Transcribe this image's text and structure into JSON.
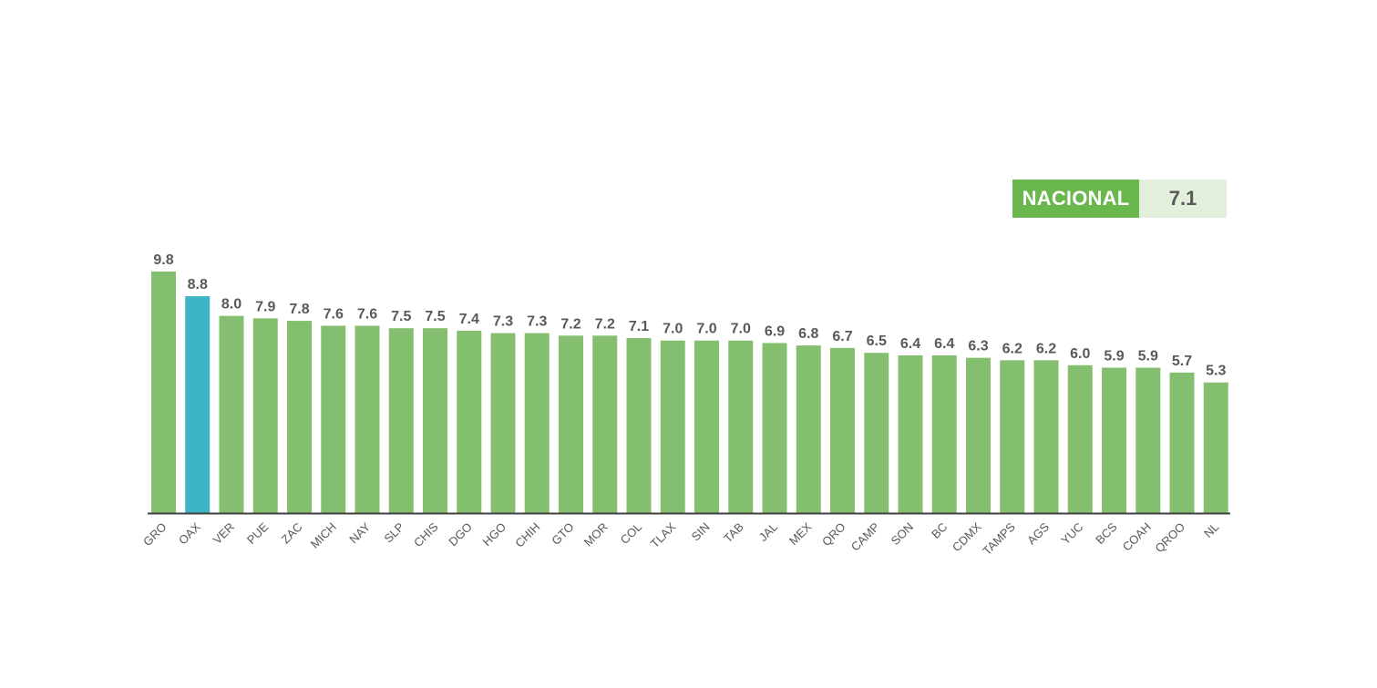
{
  "nacional": {
    "label": "NACIONAL",
    "value": "7.1"
  },
  "colors": {
    "bar": "#84bf6f",
    "highlight": "#3cb4c4",
    "axis": "#404040",
    "text": "#595959"
  },
  "chart_data": {
    "type": "bar",
    "categories": [
      "GRO",
      "OAX",
      "VER",
      "PUE",
      "ZAC",
      "MICH",
      "NAY",
      "SLP",
      "CHIS",
      "DGO",
      "HGO",
      "CHIH",
      "GTO",
      "MOR",
      "COL",
      "TLAX",
      "SIN",
      "TAB",
      "JAL",
      "MEX",
      "QRO",
      "CAMP",
      "SON",
      "BC",
      "CDMX",
      "TAMPS",
      "AGS",
      "YUC",
      "BCS",
      "COAH",
      "QROO",
      "NL"
    ],
    "values": [
      9.8,
      8.8,
      8.0,
      7.9,
      7.8,
      7.6,
      7.6,
      7.5,
      7.5,
      7.4,
      7.3,
      7.3,
      7.2,
      7.2,
      7.1,
      7.0,
      7.0,
      7.0,
      6.9,
      6.8,
      6.7,
      6.5,
      6.4,
      6.4,
      6.3,
      6.2,
      6.2,
      6.0,
      5.9,
      5.9,
      5.7,
      5.3
    ],
    "labels": [
      "9.8",
      "8.8",
      "8.0",
      "7.9",
      "7.8",
      "7.6",
      "7.6",
      "7.5",
      "7.5",
      "7.4",
      "7.3",
      "7.3",
      "7.2",
      "7.2",
      "7.1",
      "7.0",
      "7.0",
      "7.0",
      "6.9",
      "6.8",
      "6.7",
      "6.5",
      "6.4",
      "6.4",
      "6.3",
      "6.2",
      "6.2",
      "6.0",
      "5.9",
      "5.9",
      "5.7",
      "5.3"
    ],
    "highlight_category": "OAX",
    "ylim": [
      0,
      9.8
    ],
    "grid": false,
    "legend": "none"
  }
}
